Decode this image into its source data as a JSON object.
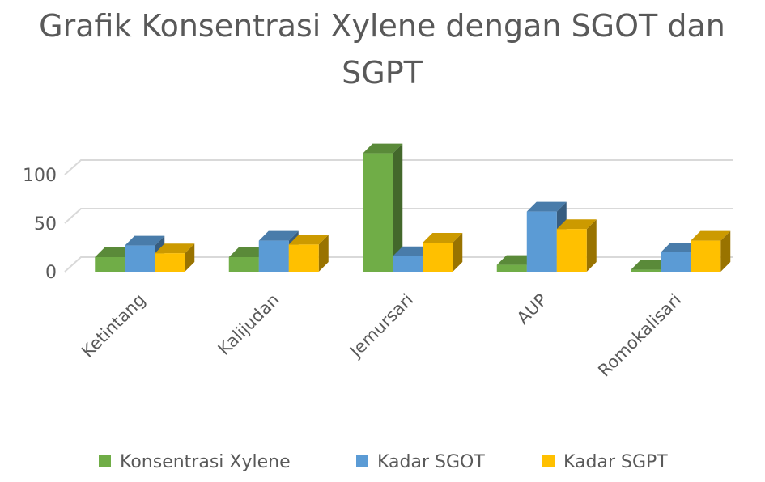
{
  "chart_data": {
    "type": "bar",
    "title": "Grafik Konsentrasi Xylene dengan SGOT dan SGPT",
    "title_lines": [
      "Grafik Konsentrasi Xylene dengan SGOT dan",
      "SGPT"
    ],
    "categories": [
      "Ketintang",
      "Kalijudan",
      "Jemursari",
      "AUP",
      "Romokalisari"
    ],
    "series": [
      {
        "name": "Konsentrasi Xylene",
        "color": "#70AD47",
        "values": [
          15,
          15,
          122,
          7,
          2
        ]
      },
      {
        "name": "Kadar SGOT",
        "color": "#5B9BD5",
        "values": [
          27,
          32,
          16,
          62,
          20
        ]
      },
      {
        "name": "Kadar SGPT",
        "color": "#FFC000",
        "values": [
          19,
          28,
          30,
          44,
          32
        ]
      }
    ],
    "yticks": [
      0,
      50,
      100
    ],
    "ylim": [
      0,
      125
    ],
    "grid": true,
    "style": "3d-clustered-column",
    "legend": "bottom"
  }
}
